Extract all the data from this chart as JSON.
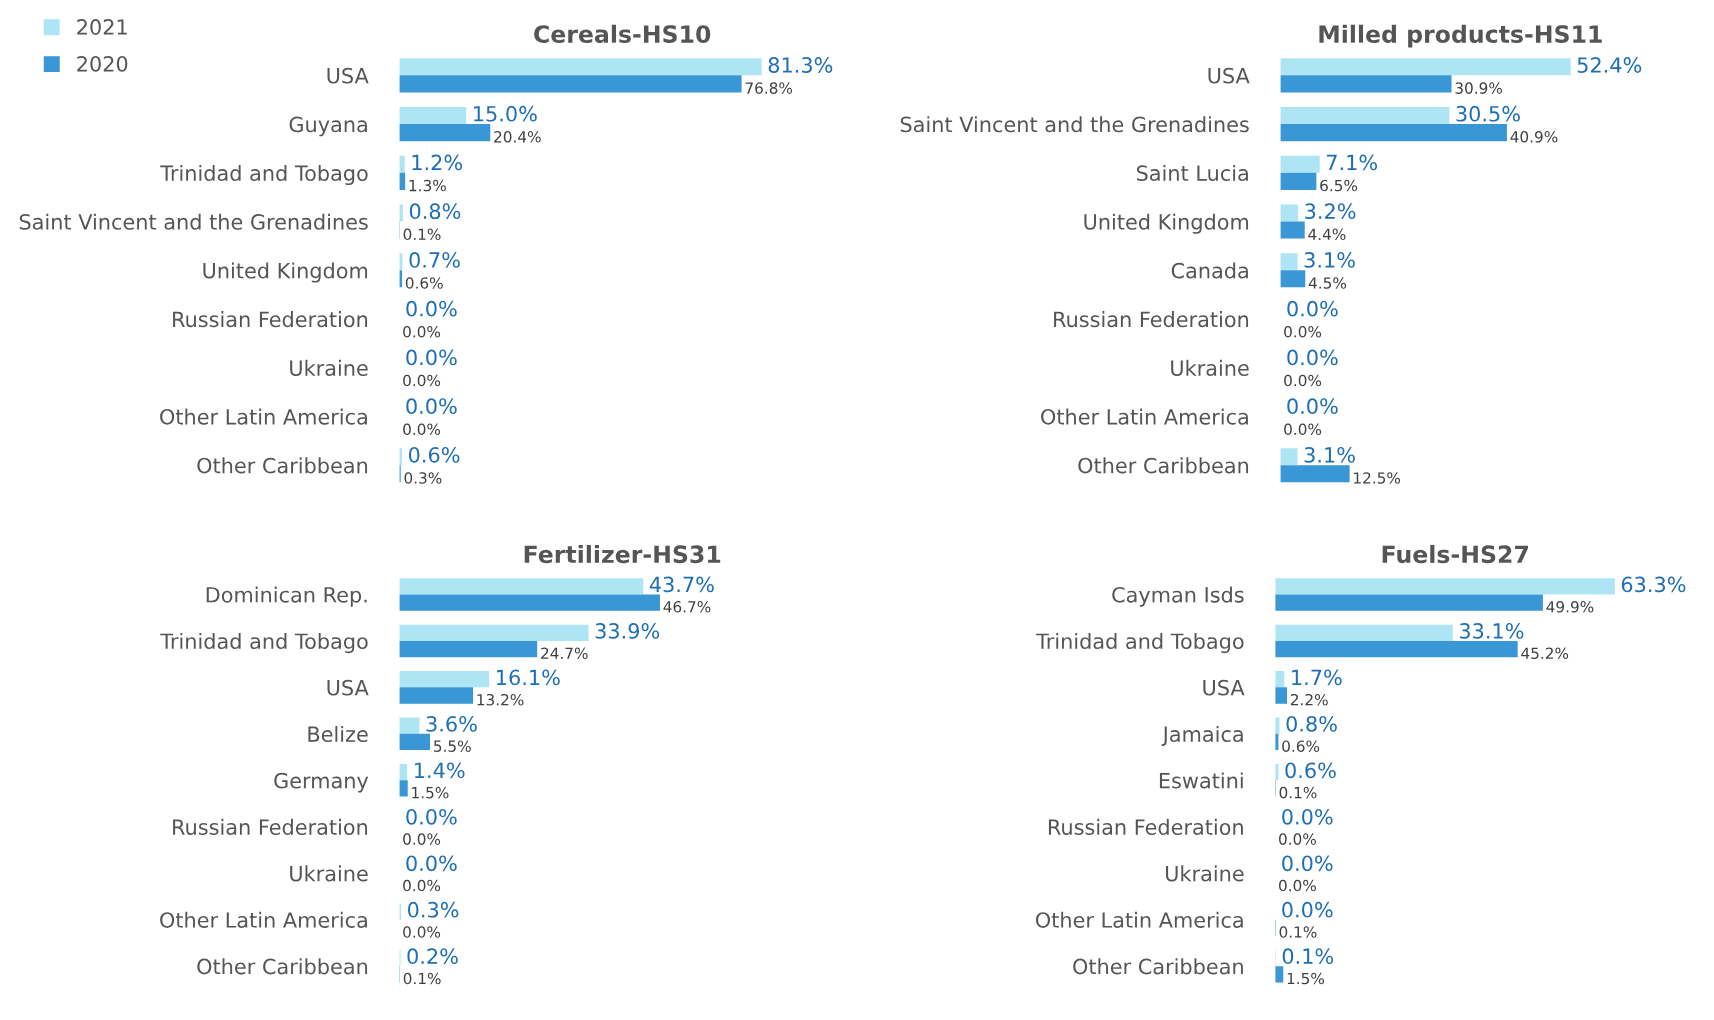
{
  "chart_data": [
    {
      "type": "bar",
      "orientation": "horizontal",
      "title": "Cereals-HS10",
      "legend": "top left",
      "tick_labels": "y",
      "grid": false,
      "categories": [
        "USA",
        "Guyana",
        "Trinidad and Tobago",
        "Saint Vincent and the Grenadines",
        "United Kingdom",
        "Russian Federation",
        "Ukraine",
        "Other Latin America",
        "Other Caribbean"
      ],
      "series": [
        {
          "name": "2021",
          "color": "#ade5f5",
          "values": [
            81.3,
            15.0,
            1.2,
            0.8,
            0.7,
            0.0,
            0.0,
            0.0,
            0.6
          ],
          "value_labels": [
            "81.3%",
            "15.0%",
            "1.2%",
            "0.8%",
            "0.7%",
            "0.0%",
            "0.0%",
            "0.0%",
            "0.6%"
          ]
        },
        {
          "name": "2020",
          "color": "#3a97d6",
          "values": [
            76.8,
            20.4,
            1.3,
            0.1,
            0.6,
            0.0,
            0.0,
            0.0,
            0.3
          ],
          "value_labels": [
            "76.8%",
            "20.4%",
            "1.3%",
            "0.1%",
            "0.6%",
            "0.0%",
            "0.0%",
            "0.0%",
            "0.3%"
          ]
        }
      ]
    },
    {
      "type": "bar",
      "orientation": "horizontal",
      "title": "Milled products-HS11",
      "tick_labels": "y",
      "grid": false,
      "categories": [
        "USA",
        "Saint Vincent and the Grenadines",
        "Saint Lucia",
        "United Kingdom",
        "Canada",
        "Russian Federation",
        "Ukraine",
        "Other Latin America",
        "Other Caribbean"
      ],
      "series": [
        {
          "name": "2021",
          "color": "#ade5f5",
          "values": [
            52.4,
            30.5,
            7.1,
            3.2,
            3.1,
            0.0,
            0.0,
            0.0,
            3.1
          ],
          "value_labels": [
            "52.4%",
            "30.5%",
            "7.1%",
            "3.2%",
            "3.1%",
            "0.0%",
            "0.0%",
            "0.0%",
            "3.1%"
          ]
        },
        {
          "name": "2020",
          "color": "#3a97d6",
          "values": [
            30.9,
            40.9,
            6.5,
            4.4,
            4.5,
            0.0,
            0.0,
            0.0,
            12.5
          ],
          "value_labels": [
            "30.9%",
            "40.9%",
            "6.5%",
            "4.4%",
            "4.5%",
            "0.0%",
            "0.0%",
            "0.0%",
            "12.5%"
          ]
        }
      ]
    },
    {
      "type": "bar",
      "orientation": "horizontal",
      "title": "Fertilizer-HS31",
      "tick_labels": "y",
      "grid": false,
      "categories": [
        "Dominican Rep.",
        "Trinidad and Tobago",
        "USA",
        "Belize",
        "Germany",
        "Russian Federation",
        "Ukraine",
        "Other Latin America",
        "Other Caribbean"
      ],
      "series": [
        {
          "name": "2021",
          "color": "#ade5f5",
          "values": [
            43.7,
            33.9,
            16.1,
            3.6,
            1.4,
            0.0,
            0.0,
            0.3,
            0.2
          ],
          "value_labels": [
            "43.7%",
            "33.9%",
            "16.1%",
            "3.6%",
            "1.4%",
            "0.0%",
            "0.0%",
            "0.3%",
            "0.2%"
          ]
        },
        {
          "name": "2020",
          "color": "#3a97d6",
          "values": [
            46.7,
            24.7,
            13.2,
            5.5,
            1.5,
            0.0,
            0.0,
            0.0,
            0.1
          ],
          "value_labels": [
            "46.7%",
            "24.7%",
            "13.2%",
            "5.5%",
            "1.5%",
            "0.0%",
            "0.0%",
            "0.0%",
            "0.1%"
          ]
        }
      ]
    },
    {
      "type": "bar",
      "orientation": "horizontal",
      "title": "Fuels-HS27",
      "tick_labels": "y",
      "grid": false,
      "categories": [
        "Cayman Isds",
        "Trinidad and Tobago",
        "USA",
        "Jamaica",
        "Eswatini",
        "Russian Federation",
        "Ukraine",
        "Other Latin America",
        "Other Caribbean"
      ],
      "series": [
        {
          "name": "2021",
          "color": "#ade5f5",
          "values": [
            63.3,
            33.1,
            1.7,
            0.8,
            0.6,
            0.0,
            0.0,
            0.0,
            0.1
          ],
          "value_labels": [
            "63.3%",
            "33.1%",
            "1.7%",
            "0.8%",
            "0.6%",
            "0.0%",
            "0.0%",
            "0.0%",
            "0.1%"
          ]
        },
        {
          "name": "2020",
          "color": "#3a97d6",
          "values": [
            49.9,
            45.2,
            2.2,
            0.6,
            0.1,
            0.0,
            0.0,
            0.1,
            1.5
          ],
          "value_labels": [
            "49.9%",
            "45.2%",
            "2.2%",
            "0.6%",
            "0.1%",
            "0.0%",
            "0.0%",
            "0.1%",
            "1.5%"
          ]
        }
      ]
    }
  ]
}
